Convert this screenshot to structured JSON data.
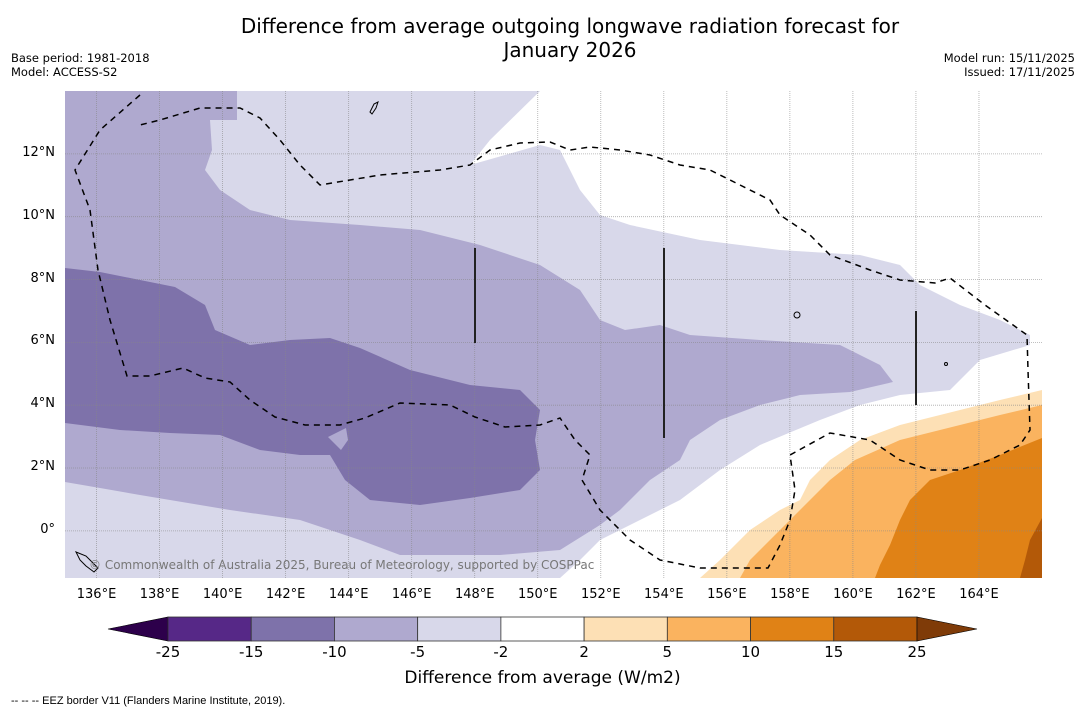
{
  "title_line1": "Difference from average outgoing longwave radiation forecast for",
  "title_line2": "January 2026",
  "meta_left": {
    "base_period": "Base period: 1981-2018",
    "model": "Model: ACCESS-S2"
  },
  "meta_right": {
    "model_run": "Model run: 15/11/2025",
    "issued": "Issued: 17/11/2025"
  },
  "copyright": "© Commonwealth of Australia 2025, Bureau of Meteorology, supported by COSPPac",
  "footer": "--  --  -- EEZ border V11 (Flanders Marine Institute, 2019).",
  "chart_data": {
    "type": "heatmap",
    "title": "Difference from average outgoing longwave radiation forecast for January 2026",
    "extent": {
      "lon": [
        135,
        166
      ],
      "lat": [
        -1.5,
        14
      ]
    },
    "xlabel": "",
    "ylabel": "",
    "x_ticks": [
      "136°E",
      "138°E",
      "140°E",
      "142°E",
      "144°E",
      "146°E",
      "148°E",
      "150°E",
      "152°E",
      "154°E",
      "156°E",
      "158°E",
      "160°E",
      "162°E",
      "164°E"
    ],
    "x_tick_values": [
      136,
      138,
      140,
      142,
      144,
      146,
      148,
      150,
      152,
      154,
      156,
      158,
      160,
      162,
      164
    ],
    "y_ticks": [
      "12°N",
      "10°N",
      "8°N",
      "6°N",
      "4°N",
      "2°N",
      "0°"
    ],
    "y_tick_values": [
      12,
      10,
      8,
      6,
      4,
      2,
      0
    ],
    "grid": true,
    "colorbar": {
      "title": "Difference from average (W/m2)",
      "boundaries": [
        -25,
        -15,
        -10,
        -5,
        -2,
        2,
        5,
        10,
        15,
        25
      ],
      "tick_labels": [
        "-25",
        "-15",
        "-10",
        "-5",
        "-2",
        "2",
        "5",
        "10",
        "15",
        "25"
      ],
      "colors": [
        "#562887",
        "#7e72aa",
        "#afa9cf",
        "#d8d8ea",
        "#ffffff",
        "#fde0b5",
        "#fab35f",
        "#e08216",
        "#b35908"
      ],
      "under_color": "#2d004b",
      "over_color": "#7f3b08",
      "extend": "both"
    },
    "regions": [
      {
        "category": "-10 to -5",
        "description": "Western Pacific, north-west of 148°E & north of 8°N, plus band from 0°N to 9°N west of 158°E"
      },
      {
        "category": "-15 to -10",
        "description": "Core band 2°N–8°N from 135°E to 150°E"
      },
      {
        "category": "-5 to -2",
        "description": "Northern fringe and eastern equatorial band to 165°E near 5–7°N"
      },
      {
        "category": "-2 to 2",
        "description": "North-east (north of 6°N east of 150°E) and south-east near equator"
      },
      {
        "category": "2 to 5",
        "description": "South-east wedge from 155°E, 0°–4°N"
      },
      {
        "category": "5 to 10",
        "description": "South-east from 157°E, -1.5°–4°N"
      },
      {
        "category": "10 to 15",
        "description": "South-east from 160°E, -1.5°–3°N"
      },
      {
        "category": "15 to 25",
        "description": "Far south-east corner near 165°E, -1.5°–0.5°S"
      }
    ],
    "legend": "bottom",
    "overlays": [
      "EEZ border V11 (dashed)"
    ]
  }
}
